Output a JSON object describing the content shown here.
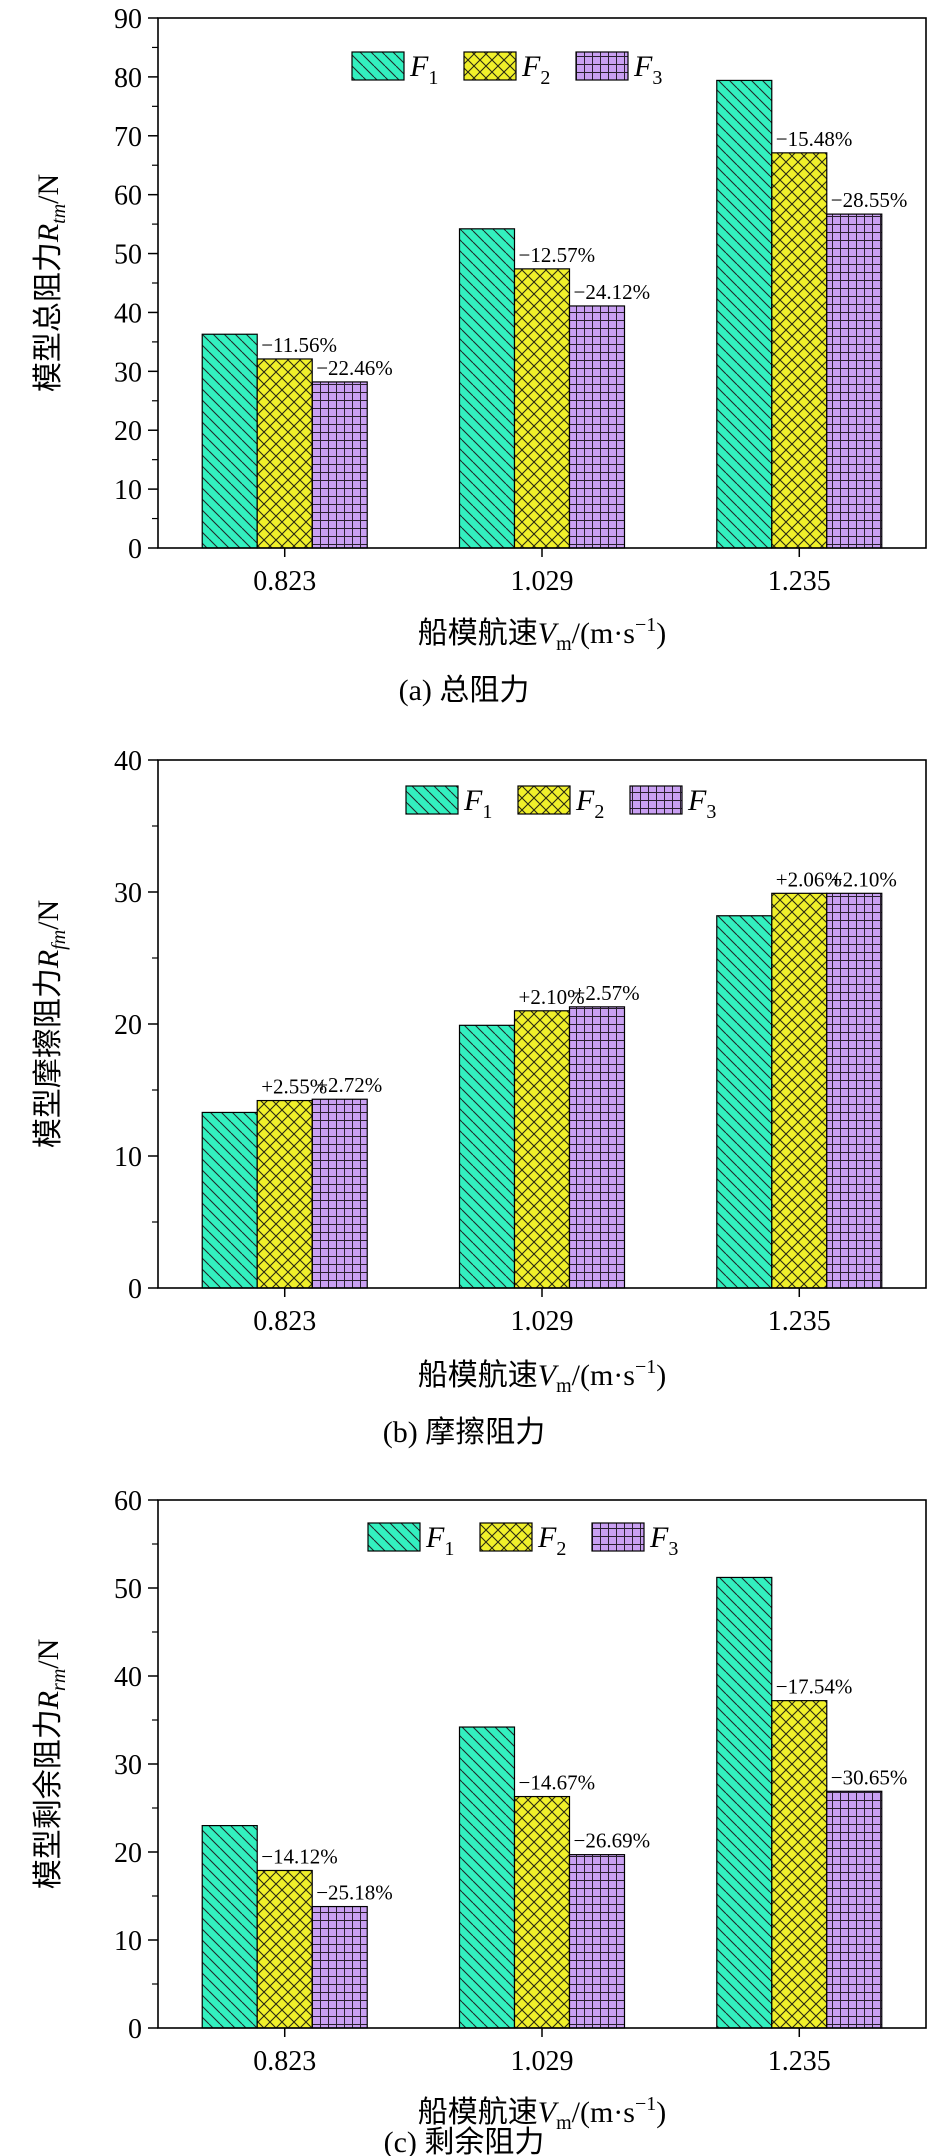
{
  "figure_captions": [
    "(a) 总阻力",
    "(b) 摩擦阻力",
    "(c) 剩余阻力"
  ],
  "chart_data": [
    {
      "type": "bar",
      "title": "(a) 总阻力",
      "xlabel": "船模航速",
      "xlabel_symbol": "V",
      "xlabel_sub": "m",
      "xlabel_unit": "/(m·s",
      "xlabel_unit_sup": "−1",
      "xlabel_unit_close": ")",
      "ylabel": "模型总阻力",
      "ylabel_symbol": "R",
      "ylabel_sub": "tm",
      "ylabel_unit": "/N",
      "categories": [
        "0.823",
        "1.029",
        "1.235"
      ],
      "ylim": [
        0,
        90
      ],
      "yticks": [
        0,
        10,
        20,
        30,
        40,
        50,
        60,
        70,
        80,
        90
      ],
      "ytick_labels": [
        "0",
        "10",
        "20",
        "30",
        "40",
        "50",
        "60",
        "70",
        "80",
        "90"
      ],
      "legend_position": "top-center",
      "series": [
        {
          "name": "F",
          "sub": "1",
          "color": "#33f0bf",
          "pattern": "diag-left",
          "values": [
            36.3,
            54.2,
            79.4
          ],
          "labels": [
            "",
            "",
            ""
          ]
        },
        {
          "name": "F",
          "sub": "2",
          "color": "#f0f02a",
          "pattern": "crosshatch",
          "values": [
            32.1,
            47.4,
            67.1
          ],
          "labels": [
            "−11.56%",
            "−12.57%",
            "−15.48%"
          ]
        },
        {
          "name": "F",
          "sub": "3",
          "color": "#c9a0f2",
          "pattern": "grid",
          "values": [
            28.2,
            41.1,
            56.7
          ],
          "labels": [
            "−22.46%",
            "−24.12%",
            "−28.55%"
          ]
        }
      ]
    },
    {
      "type": "bar",
      "title": "(b) 摩擦阻力",
      "xlabel": "船模航速",
      "xlabel_symbol": "V",
      "xlabel_sub": "m",
      "xlabel_unit": "/(m·s",
      "xlabel_unit_sup": "−1",
      "xlabel_unit_close": ")",
      "ylabel": "模型摩擦阻力",
      "ylabel_symbol": "R",
      "ylabel_sub": "fm",
      "ylabel_unit": "/N",
      "categories": [
        "0.823",
        "1.029",
        "1.235"
      ],
      "ylim": [
        0,
        40
      ],
      "yticks": [
        0,
        10,
        20,
        30,
        40
      ],
      "ytick_labels": [
        "0",
        "10",
        "20",
        "30",
        "40"
      ],
      "legend_position": "top-center",
      "series": [
        {
          "name": "F",
          "sub": "1",
          "color": "#33f0bf",
          "pattern": "diag-left",
          "values": [
            13.3,
            19.9,
            28.2
          ],
          "labels": [
            "",
            "",
            ""
          ]
        },
        {
          "name": "F",
          "sub": "2",
          "color": "#f0f02a",
          "pattern": "crosshatch",
          "values": [
            14.2,
            21.0,
            29.9
          ],
          "labels": [
            "+2.55%",
            "+2.10%",
            "+2.06%"
          ]
        },
        {
          "name": "F",
          "sub": "3",
          "color": "#c9a0f2",
          "pattern": "grid",
          "values": [
            14.3,
            21.3,
            29.9
          ],
          "labels": [
            "+2.72%",
            "+2.57%",
            "+2.10%"
          ]
        }
      ]
    },
    {
      "type": "bar",
      "title": "(c) 剩余阻力",
      "xlabel": "船模航速",
      "xlabel_symbol": "V",
      "xlabel_sub": "m",
      "xlabel_unit": "/(m·s",
      "xlabel_unit_sup": "−1",
      "xlabel_unit_close": ")",
      "ylabel": "模型剩余阻力",
      "ylabel_symbol": "R",
      "ylabel_sub": "rm",
      "ylabel_unit": "/N",
      "categories": [
        "0.823",
        "1.029",
        "1.235"
      ],
      "ylim": [
        0,
        60
      ],
      "yticks": [
        0,
        10,
        20,
        30,
        40,
        50,
        60
      ],
      "ytick_labels": [
        "0",
        "10",
        "20",
        "30",
        "40",
        "50",
        "60"
      ],
      "legend_position": "top-center",
      "series": [
        {
          "name": "F",
          "sub": "1",
          "color": "#33f0bf",
          "pattern": "diag-left",
          "values": [
            23.0,
            34.2,
            51.2
          ],
          "labels": [
            "",
            "",
            ""
          ]
        },
        {
          "name": "F",
          "sub": "2",
          "color": "#f0f02a",
          "pattern": "crosshatch",
          "values": [
            17.9,
            26.3,
            37.2
          ],
          "labels": [
            "−14.12%",
            "−14.67%",
            "−17.54%"
          ]
        },
        {
          "name": "F",
          "sub": "3",
          "color": "#c9a0f2",
          "pattern": "grid",
          "values": [
            13.8,
            19.7,
            26.9
          ],
          "labels": [
            "−25.18%",
            "−26.69%",
            "−30.65%"
          ]
        }
      ]
    }
  ]
}
